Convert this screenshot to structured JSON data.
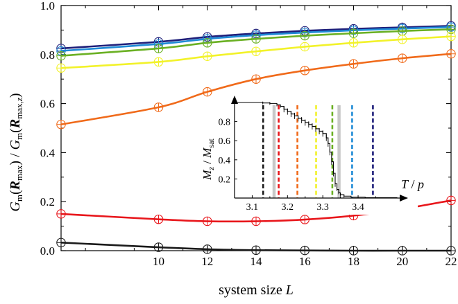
{
  "chart_data": [
    {
      "type": "line",
      "xlabel": "system size L",
      "ylabel": "G_m(R_max) / G_m(R_max,z)",
      "xlim": [
        6,
        22
      ],
      "ylim": [
        0,
        1
      ],
      "xticks": [
        10,
        12,
        14,
        16,
        18,
        20,
        22
      ],
      "yticks": [
        "0.0",
        "0.2",
        "0.4",
        "0.6",
        "0.8",
        "1.0"
      ],
      "marker": "circle",
      "series": [
        {
          "color": "#1f1f7a",
          "x": [
            6,
            10,
            12,
            14,
            16,
            18,
            20,
            22
          ],
          "values": [
            0.825,
            0.852,
            0.872,
            0.886,
            0.897,
            0.905,
            0.911,
            0.917
          ]
        },
        {
          "color": "#1f8bd6",
          "x": [
            6,
            10,
            12,
            14,
            16,
            18,
            20,
            22
          ],
          "values": [
            0.815,
            0.843,
            0.864,
            0.879,
            0.89,
            0.899,
            0.906,
            0.912
          ]
        },
        {
          "color": "#6ab023",
          "x": [
            6,
            10,
            12,
            14,
            16,
            18,
            20,
            22
          ],
          "values": [
            0.795,
            0.825,
            0.848,
            0.864,
            0.877,
            0.887,
            0.896,
            0.903
          ]
        },
        {
          "color": "#f2f22a",
          "x": [
            6,
            10,
            12,
            14,
            16,
            18,
            20,
            22
          ],
          "values": [
            0.745,
            0.77,
            0.793,
            0.813,
            0.832,
            0.848,
            0.862,
            0.874
          ]
        },
        {
          "color": "#f06a1a",
          "x": [
            6,
            10,
            12,
            14,
            16,
            18,
            20,
            22
          ],
          "values": [
            0.515,
            0.585,
            0.648,
            0.7,
            0.735,
            0.762,
            0.785,
            0.803
          ]
        },
        {
          "color": "#e8161b",
          "x": [
            6,
            10,
            12,
            14,
            16,
            18,
            20,
            22
          ],
          "values": [
            0.15,
            0.128,
            0.12,
            0.12,
            0.127,
            0.143,
            0.17,
            0.205
          ]
        },
        {
          "color": "#1a1a1a",
          "x": [
            6,
            10,
            12,
            14,
            16,
            18,
            20,
            22
          ],
          "values": [
            0.033,
            0.014,
            0.006,
            0.002,
            0.001,
            0.0,
            0.0,
            0.0
          ]
        }
      ]
    },
    {
      "type": "line",
      "xlabel": "T / p",
      "ylabel": "M_z / M_sat",
      "xlim": [
        3.05,
        3.51
      ],
      "ylim": [
        0,
        1
      ],
      "xticks": [
        "3.1",
        "3.2",
        "3.3",
        "3.4"
      ],
      "yticks": [
        "0.2",
        "0.4",
        "0.6",
        "0.8"
      ],
      "series": [
        {
          "color": "#000000",
          "style": "step-errorbar",
          "x": [
            3.05,
            3.1,
            3.13,
            3.15,
            3.17,
            3.18,
            3.19,
            3.2,
            3.21,
            3.22,
            3.23,
            3.24,
            3.25,
            3.26,
            3.27,
            3.28,
            3.29,
            3.3,
            3.31,
            3.315,
            3.32,
            3.325,
            3.33,
            3.335,
            3.34,
            3.345,
            3.35,
            3.36,
            3.38,
            3.42,
            3.51
          ],
          "values": [
            1.0,
            1.0,
            0.995,
            0.99,
            0.975,
            0.96,
            0.93,
            0.905,
            0.88,
            0.86,
            0.835,
            0.815,
            0.79,
            0.77,
            0.75,
            0.725,
            0.7,
            0.675,
            0.63,
            0.57,
            0.48,
            0.38,
            0.26,
            0.15,
            0.09,
            0.055,
            0.035,
            0.02,
            0.01,
            0.004,
            0.0
          ]
        }
      ],
      "vlines": [
        {
          "x": 3.131,
          "color": "#1a1a1a",
          "dashed": true
        },
        {
          "x": 3.175,
          "color": "#e8161b",
          "dashed": true
        },
        {
          "x": 3.228,
          "color": "#f06a1a",
          "dashed": true
        },
        {
          "x": 3.281,
          "color": "#f2f22a",
          "dashed": true
        },
        {
          "x": 3.327,
          "color": "#6ab023",
          "dashed": true
        },
        {
          "x": 3.383,
          "color": "#1f8bd6",
          "dashed": true
        },
        {
          "x": 3.442,
          "color": "#1f1f7a",
          "dashed": true
        },
        {
          "x": 3.162,
          "color": "#c8c8c8",
          "dashed": false
        },
        {
          "x": 3.346,
          "color": "#c8c8c8",
          "dashed": false
        }
      ]
    }
  ]
}
